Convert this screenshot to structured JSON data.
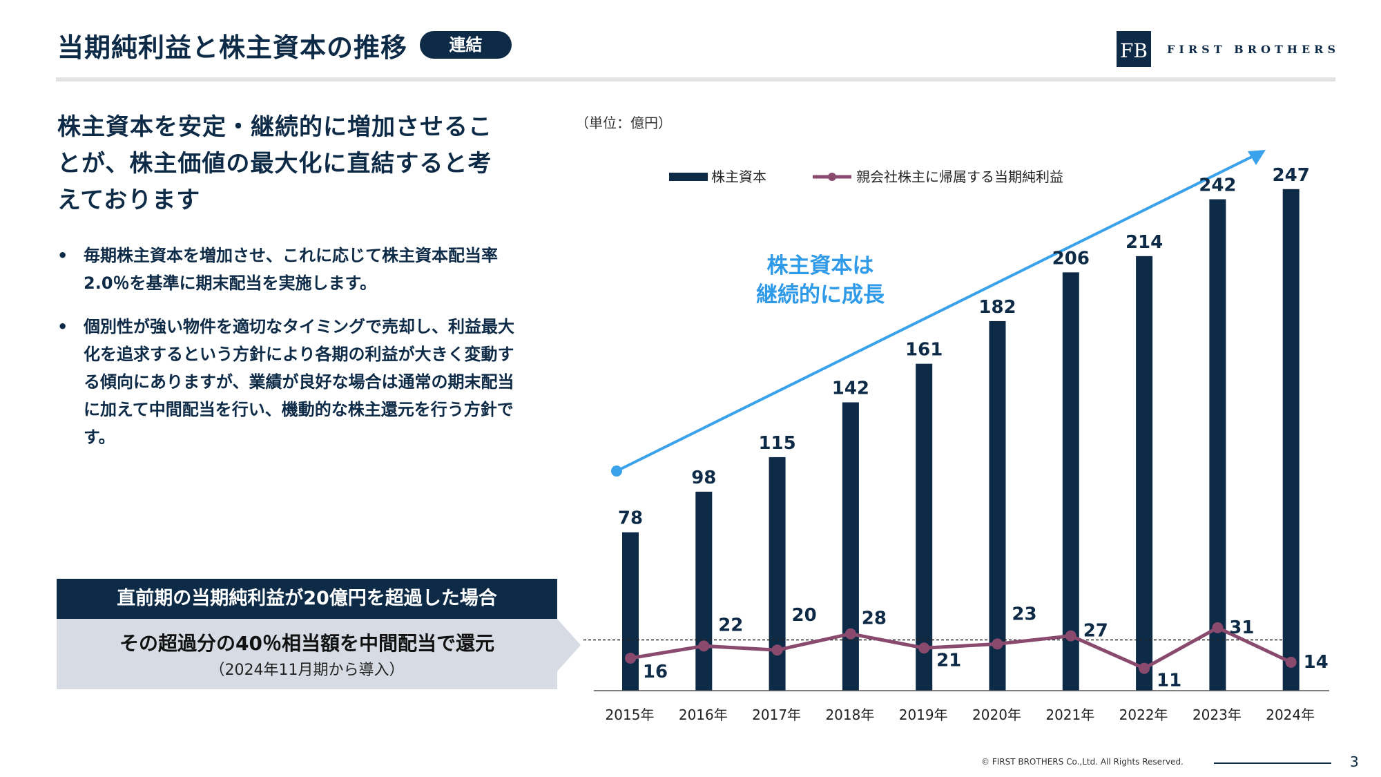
{
  "header": {
    "title": "当期純利益と株主資本の推移",
    "badge": "連結",
    "brand": "FIRST BROTHERS",
    "logo_mark": "FB"
  },
  "left": {
    "headline": "株主資本を安定・継続的に増加させることが、株主価値の最大化に直結すると考えております",
    "bullets": [
      "毎期株主資本を増加させ、これに応じて株主資本配当率2.0％を基準に期末配当を実施します。",
      "個別性が強い物件を適切なタイミングで売却し、利益最大化を追求するという方針により各期の利益が大きく変動する傾向にありますが、業績が良好な場合は通常の期末配当に加えて中間配当を行い、機動的な株主還元を行う方針です。"
    ],
    "callout": {
      "head": "直前期の当期純利益が20億円を超過した場合",
      "main": "その超過分の40％相当額を中間配当で還元",
      "sub": "（2024年11月期から導入）"
    }
  },
  "chart_data": {
    "type": "bar",
    "unit_label": "（単位：億円）",
    "categories": [
      "2015年",
      "2016年",
      "2017年",
      "2018年",
      "2019年",
      "2020年",
      "2021年",
      "2022年",
      "2023年",
      "2024年"
    ],
    "series": [
      {
        "name": "株主資本",
        "type": "bar",
        "color": "#0d2a47",
        "values": [
          78,
          98,
          115,
          142,
          161,
          182,
          206,
          214,
          242,
          247
        ]
      },
      {
        "name": "親会社株主に帰属する当期純利益",
        "type": "line",
        "color": "#8a4a6e",
        "values": [
          16,
          22,
          20,
          28,
          21,
          23,
          27,
          11,
          31,
          14
        ]
      }
    ],
    "ylim": [
      0,
      270
    ],
    "threshold_line": 25,
    "annotation": {
      "text": "株主資本は継続的に成長",
      "color": "#2f9ae8"
    },
    "trend_arrow_color": "#3aa2ea",
    "grid": false,
    "legend_position": "top"
  },
  "footer": {
    "copyright": "© FIRST BROTHERS Co.,Ltd. All Rights Reserved.",
    "page": "3"
  }
}
